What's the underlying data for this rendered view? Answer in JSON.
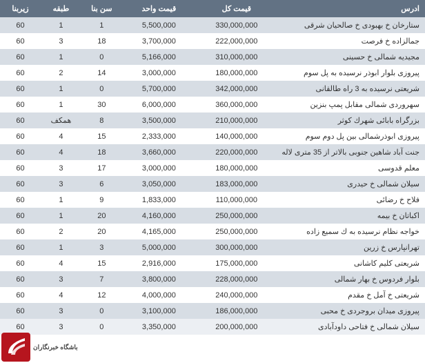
{
  "table": {
    "columns": [
      "ادرس",
      "قیمت کل",
      "قیمت واحد",
      "سن بنا",
      "طبقه",
      "زیربنا"
    ],
    "header_bg": "#627284",
    "header_fg": "#ffffff",
    "row_odd_bg": "#d7dde4",
    "row_even_bg": "#ffffff",
    "text_color": "#333333",
    "font_size": 11,
    "rows": [
      [
        "ستارخان خ بهبودی خ صالحیان شرقی",
        "330,000,000",
        "5,500,000",
        "1",
        "1",
        "60"
      ],
      [
        "جمالزاده خ فرصت",
        "222,000,000",
        "3,700,000",
        "18",
        "3",
        "60"
      ],
      [
        "مجیدیه شمالی خ حسینی",
        "310,000,000",
        "5,166,000",
        "0",
        "1",
        "60"
      ],
      [
        "پیروزی بلوار ابوذر نرسیده به پل سوم",
        "180,000,000",
        "3,000,000",
        "14",
        "2",
        "60"
      ],
      [
        "شریعتی نرسیده به 3 راه طالقانی",
        "342,000,000",
        "5,700,000",
        "0",
        "1",
        "60"
      ],
      [
        "سهروردی شمالی مقابل پمپ بنزین",
        "360,000,000",
        "6,000,000",
        "30",
        "1",
        "60"
      ],
      [
        "بزرگراه بابائی شهرك كوثر",
        "210,000,000",
        "3,500,000",
        "8",
        "همكف",
        "60"
      ],
      [
        "پیروزی ابوذرشمالی بین پل دوم سوم",
        "140,000,000",
        "2,333,000",
        "15",
        "4",
        "60"
      ],
      [
        "جنت آباد شاهین جنوبی بالاتر از 35 متری لاله",
        "220,000,000",
        "3,660,000",
        "18",
        "4",
        "60"
      ],
      [
        "معلم قدوسی",
        "180,000,000",
        "3,000,000",
        "17",
        "3",
        "60"
      ],
      [
        "سیلان شمالی خ حیدری",
        "183,000,000",
        "3,050,000",
        "6",
        "3",
        "60"
      ],
      [
        "فلاح خ رضائی",
        "110,000,000",
        "1,833,000",
        "9",
        "1",
        "60"
      ],
      [
        "اكباتان خ بیمه",
        "250,000,000",
        "4,160,000",
        "20",
        "1",
        "60"
      ],
      [
        "خواجه نظام نرسیده به ك سمیع زاده",
        "250,000,000",
        "4,165,000",
        "20",
        "2",
        "60"
      ],
      [
        "تهرانپارس خ زرین",
        "300,000,000",
        "5,000,000",
        "3",
        "1",
        "60"
      ],
      [
        "شریعتی كلیم كاشانی",
        "175,000,000",
        "2,916,000",
        "15",
        "4",
        "60"
      ],
      [
        "بلوار فردوس خ بهار شمالی",
        "228,000,000",
        "3,800,000",
        "7",
        "3",
        "60"
      ],
      [
        "شریعتی خ آمل خ مقدم",
        "240,000,000",
        "4,000,000",
        "12",
        "4",
        "60"
      ],
      [
        "پیروزی میدان بروجردی خ محبی",
        "186,000,000",
        "3,100,000",
        "0",
        "3",
        "60"
      ],
      [
        "سیلان شمالی خ فتاحی داودآبادی",
        "200,000,000",
        "3,350,000",
        "0",
        "3",
        "60"
      ]
    ]
  },
  "logo": {
    "brand_ar": "باشگاه خبرنگاران",
    "brand_en": "",
    "badge_bg": "#b6151e"
  }
}
